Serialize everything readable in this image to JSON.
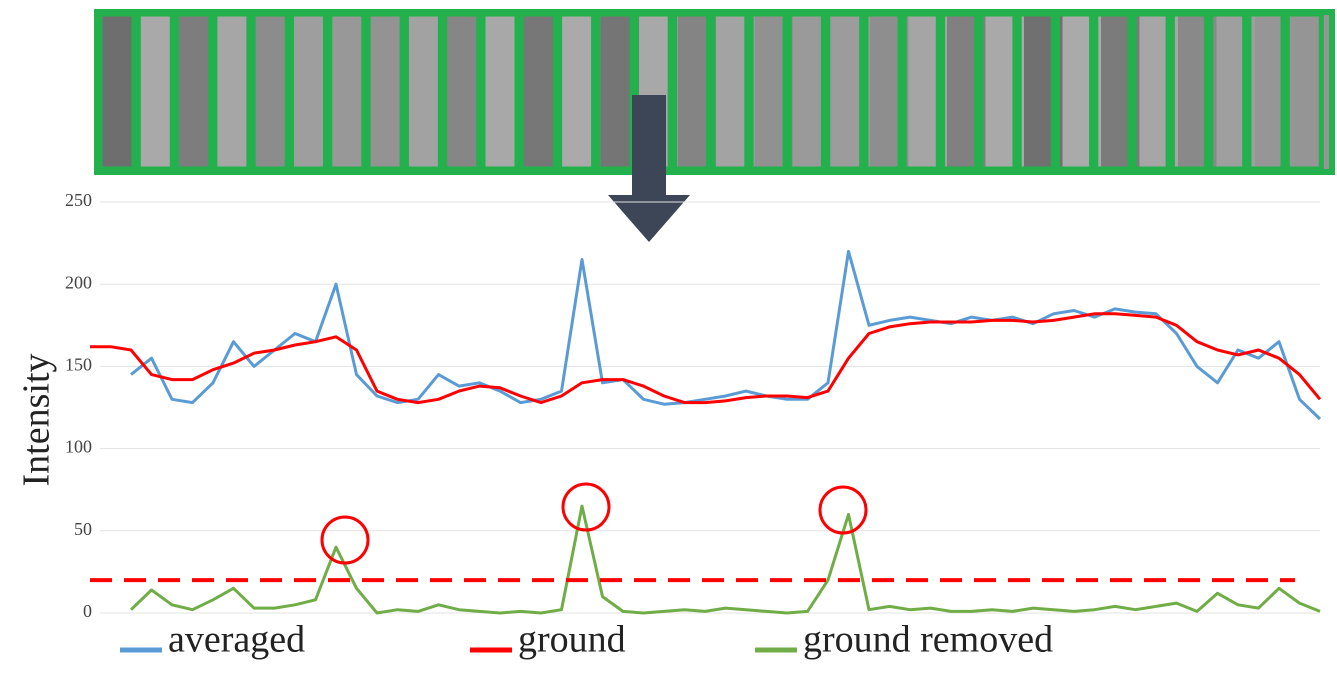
{
  "chart_data": {
    "type": "line",
    "ylabel": "Intensity",
    "ylim": [
      0,
      250
    ],
    "yticks": [
      0,
      50,
      100,
      150,
      200,
      250
    ],
    "grid": true,
    "threshold": 20,
    "series": [
      {
        "name": "averaged",
        "color": "#5b9bd5",
        "values": [
          null,
          null,
          145,
          155,
          130,
          128,
          140,
          165,
          150,
          160,
          170,
          165,
          200,
          145,
          132,
          128,
          130,
          145,
          138,
          140,
          135,
          128,
          130,
          135,
          215,
          140,
          142,
          130,
          127,
          128,
          130,
          132,
          135,
          132,
          130,
          130,
          140,
          220,
          175,
          178,
          180,
          178,
          176,
          180,
          178,
          180,
          176,
          182,
          184,
          180,
          185,
          183,
          182,
          170,
          150,
          140,
          160,
          155,
          165,
          130,
          118
        ]
      },
      {
        "name": "ground",
        "color": "#ff0000",
        "values": [
          162,
          162,
          160,
          145,
          142,
          142,
          148,
          152,
          158,
          160,
          163,
          165,
          168,
          160,
          135,
          130,
          128,
          130,
          135,
          138,
          137,
          132,
          128,
          132,
          140,
          142,
          142,
          138,
          132,
          128,
          128,
          129,
          131,
          132,
          132,
          131,
          135,
          155,
          170,
          174,
          176,
          177,
          177,
          177,
          178,
          178,
          177,
          178,
          180,
          182,
          182,
          181,
          180,
          175,
          165,
          160,
          157,
          160,
          155,
          145,
          130
        ]
      },
      {
        "name": "ground removed",
        "color": "#70ad47",
        "values": [
          null,
          null,
          2,
          14,
          5,
          2,
          8,
          15,
          3,
          3,
          5,
          8,
          40,
          15,
          0,
          2,
          1,
          5,
          2,
          1,
          0,
          1,
          0,
          2,
          65,
          10,
          1,
          0,
          1,
          2,
          1,
          3,
          2,
          1,
          0,
          1,
          20,
          60,
          2,
          4,
          2,
          3,
          1,
          1,
          2,
          1,
          3,
          2,
          1,
          2,
          4,
          2,
          4,
          6,
          1,
          12,
          5,
          3,
          15,
          6,
          1
        ]
      }
    ]
  }
}
